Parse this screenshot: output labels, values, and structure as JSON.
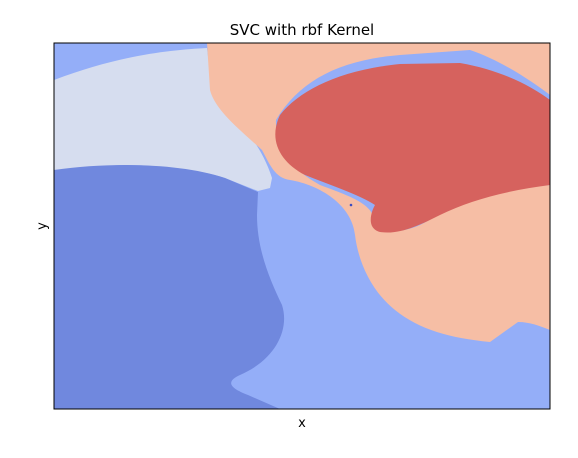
{
  "chart_data": {
    "type": "heatmap",
    "title": "SVC with rbf Kernel",
    "xlabel": "x",
    "ylabel": "y",
    "x_ticks": [],
    "y_ticks": [],
    "grid": false,
    "legend": "none",
    "regions": [
      {
        "name": "class-0-region",
        "color": "#7088DE"
      },
      {
        "name": "class-1-region",
        "color": "#94AEF8"
      },
      {
        "name": "class-2-region",
        "color": "#D6DDEF"
      },
      {
        "name": "class-3-region",
        "color": "#F6BEA5"
      },
      {
        "name": "class-4-region",
        "color": "#D6625E"
      }
    ],
    "points": [
      {
        "name": "support-point",
        "color": "#3B4CC0"
      }
    ]
  }
}
